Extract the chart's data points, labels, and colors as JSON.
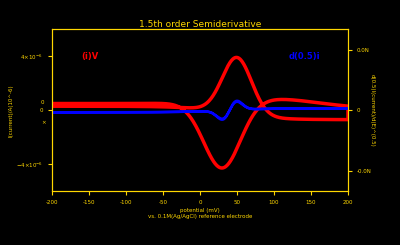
{
  "title": "1.5th order Semiderivative",
  "xlabel": "potential (mV)",
  "xlabel2": "vs. 0.1M(Ag/AgCl) reference electrode",
  "ylabel_left": "I(current)/A(10^-6)",
  "ylabel_right": "d(0.5)I(current)/d(E)^(0.5)",
  "bg_color": "#000000",
  "text_color": "#FFD700",
  "cv_color": "#FF0000",
  "semi_color": "#0000FF",
  "cv_label": "(i)V",
  "semi_label": "d(0.5)i",
  "xlim": [
    -200,
    200
  ],
  "ylim_left": [
    -6e-06,
    6e-06
  ],
  "E0": 40,
  "xticks": [
    -200,
    -150,
    -100,
    -50,
    0,
    50,
    100,
    150,
    200
  ]
}
